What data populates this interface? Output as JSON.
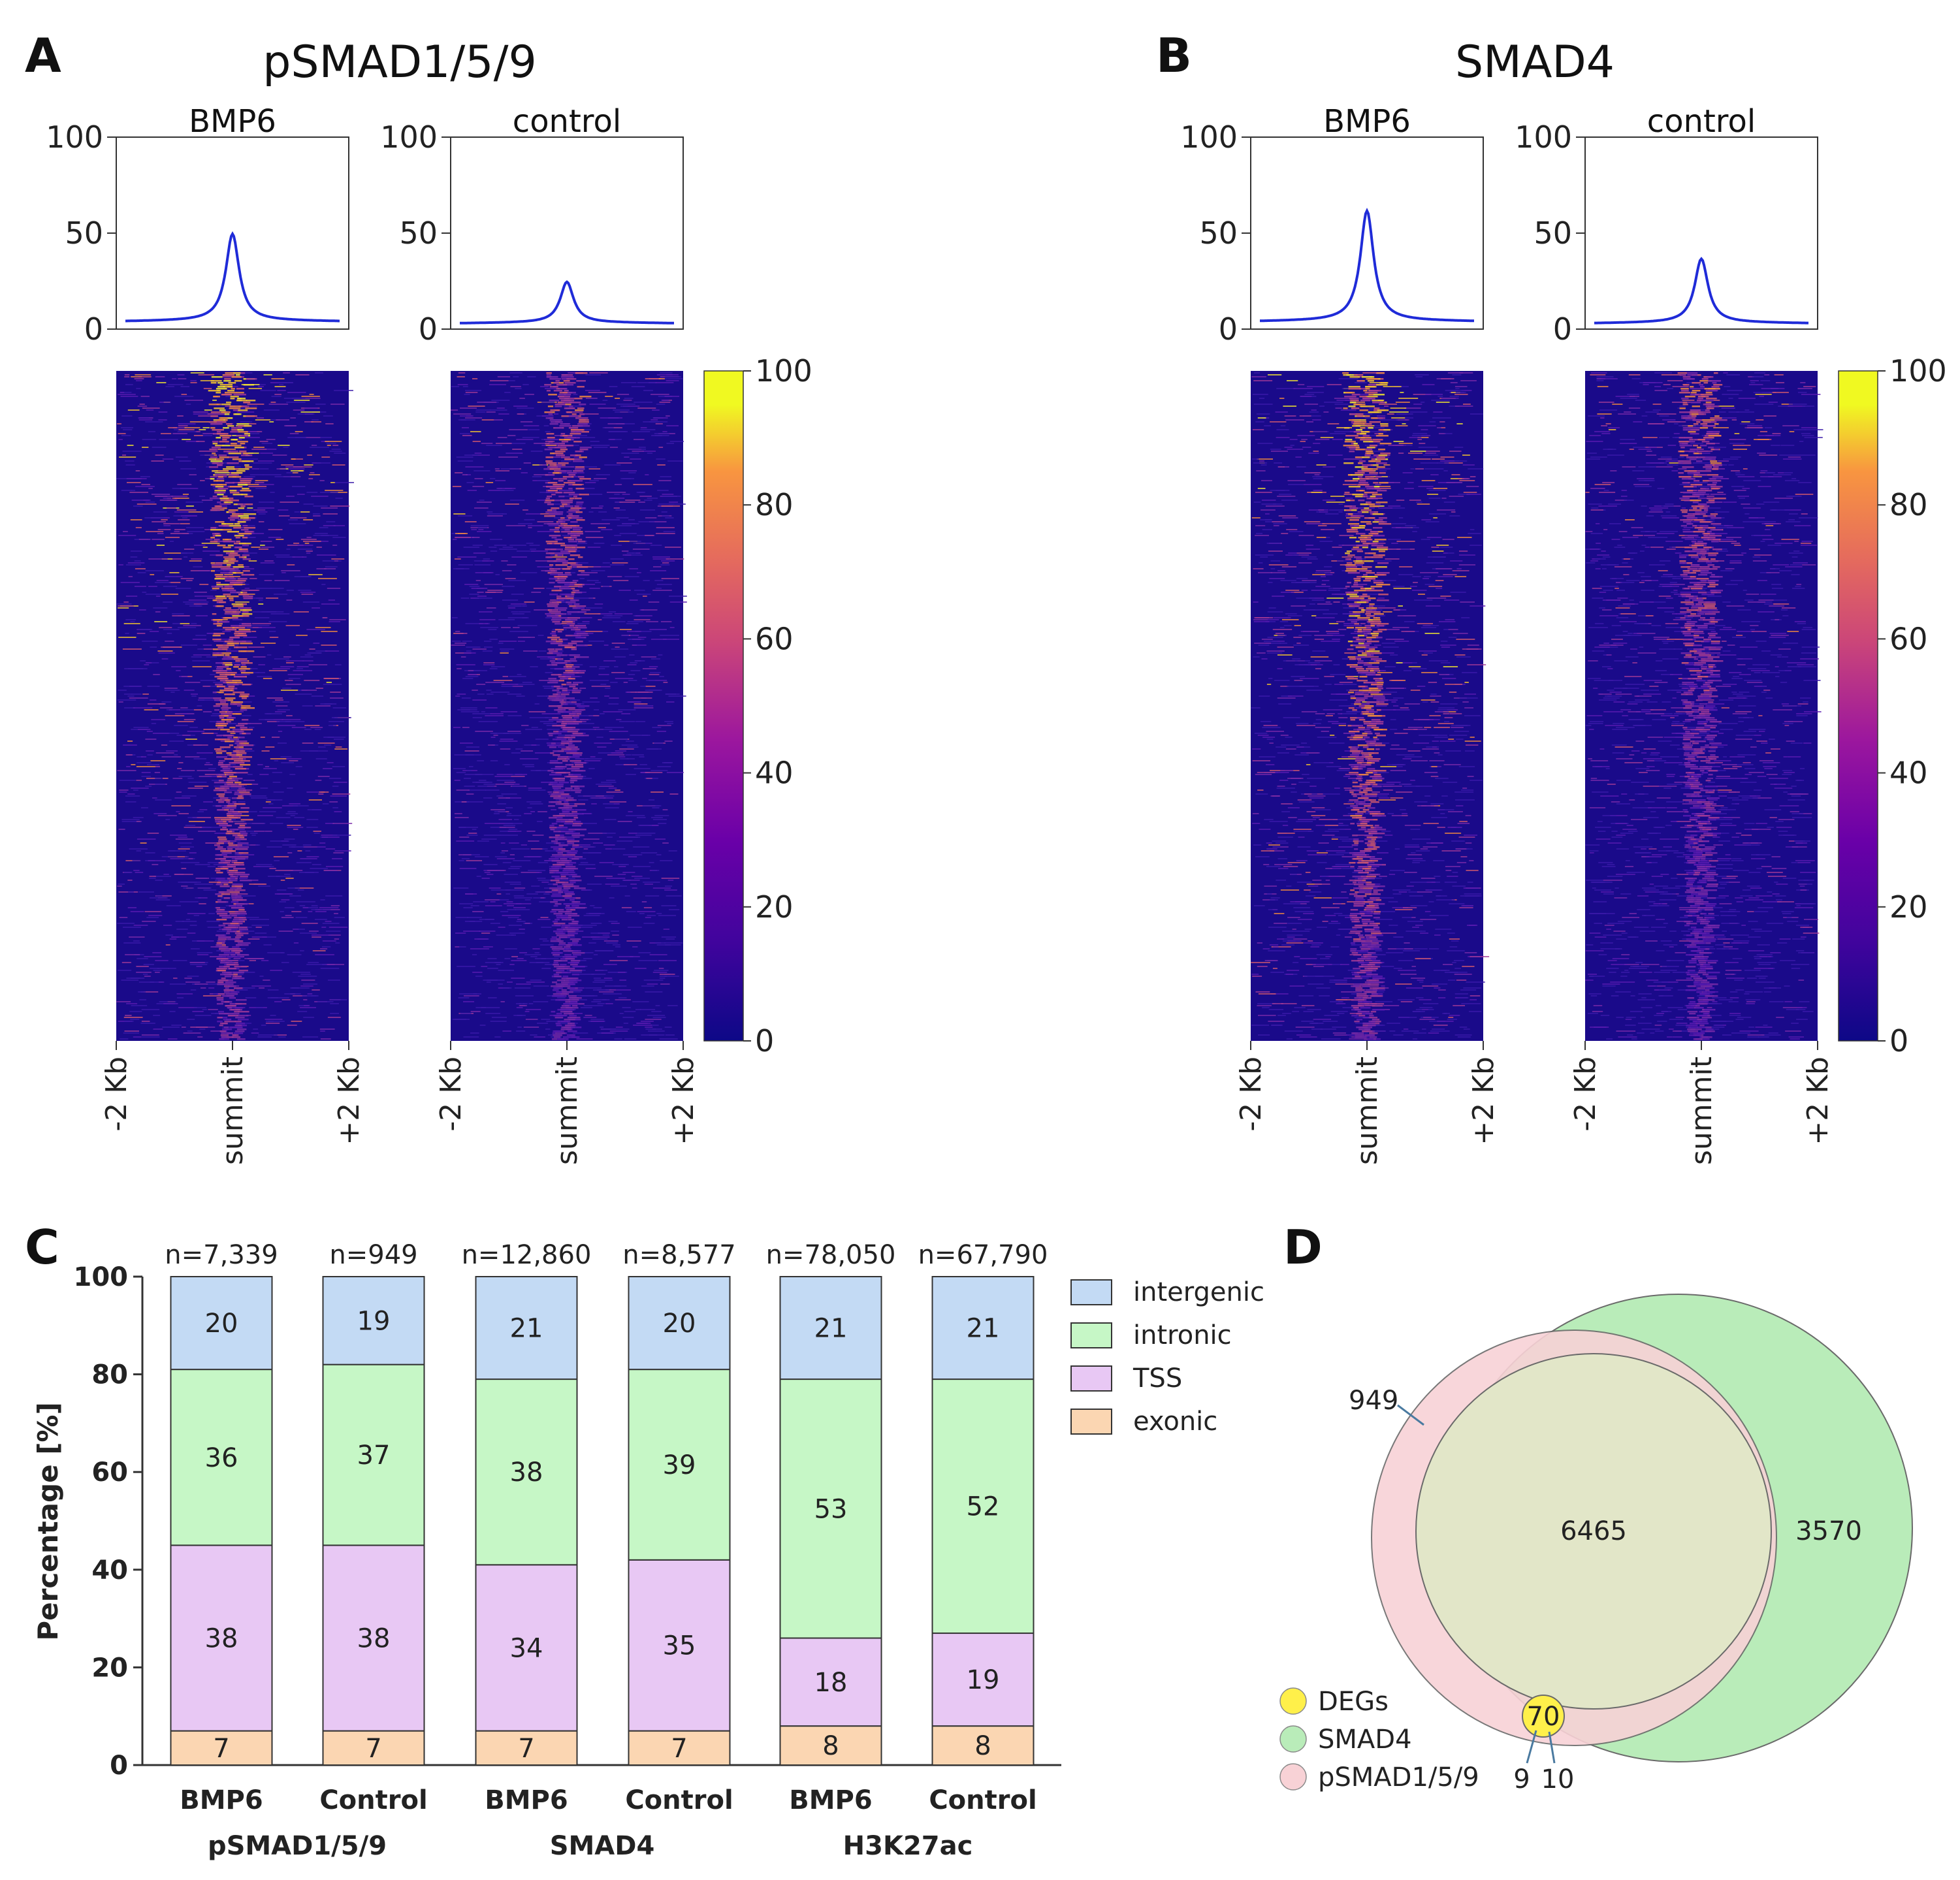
{
  "chart_data": [
    {
      "panel": "A",
      "type": "heatmap",
      "title": "pSMAD1/5/9",
      "conditions": [
        {
          "name": "BMP6",
          "profile_peak": 49,
          "profile_baseline": 4
        },
        {
          "name": "control",
          "profile_peak": 24,
          "profile_baseline": 3
        }
      ],
      "profile_ylim": [
        0,
        100
      ],
      "profile_yticks": [
        "0",
        "50",
        "100"
      ],
      "xticks": [
        "-2 Kb",
        "summit",
        "+2 Kb"
      ],
      "colorbar": {
        "min": 0,
        "max": 100,
        "ticks": [
          "0",
          "20",
          "40",
          "60",
          "80",
          "100"
        ],
        "colormap": "plasma"
      }
    },
    {
      "panel": "B",
      "type": "heatmap",
      "title": "SMAD4",
      "conditions": [
        {
          "name": "BMP6",
          "profile_peak": 61,
          "profile_baseline": 4
        },
        {
          "name": "control",
          "profile_peak": 36,
          "profile_baseline": 3
        }
      ],
      "profile_ylim": [
        0,
        100
      ],
      "profile_yticks": [
        "0",
        "50",
        "100"
      ],
      "xticks": [
        "-2 Kb",
        "summit",
        "+2 Kb"
      ],
      "colorbar": {
        "min": 0,
        "max": 100,
        "ticks": [
          "0",
          "20",
          "40",
          "60",
          "80",
          "100"
        ],
        "colormap": "plasma"
      }
    },
    {
      "panel": "C",
      "type": "bar",
      "stacked": true,
      "ylabel": "Percentage [%]",
      "ylim": [
        0,
        100
      ],
      "yticks": [
        "0",
        "20",
        "40",
        "60",
        "80",
        "100"
      ],
      "categories": [
        "BMP6",
        "Control",
        "BMP6",
        "Control",
        "BMP6",
        "Control"
      ],
      "groups": [
        "pSMAD1/5/9",
        "SMAD4",
        "H3K27ac"
      ],
      "n_labels": [
        "n=7,339",
        "n=949",
        "n=12,860",
        "n=8,577",
        "n=78,050",
        "n=67,790"
      ],
      "series": [
        {
          "name": "exonic",
          "values": [
            7,
            7,
            7,
            7,
            8,
            8
          ],
          "color": "#fbd6b2"
        },
        {
          "name": "TSS",
          "values": [
            38,
            38,
            34,
            35,
            18,
            19
          ],
          "color": "#e8c8f4"
        },
        {
          "name": "intronic",
          "values": [
            36,
            37,
            38,
            39,
            53,
            52
          ],
          "color": "#c6f7c6"
        },
        {
          "name": "intergenic",
          "values": [
            20,
            19,
            21,
            20,
            21,
            21
          ],
          "color": "#c3daf4"
        }
      ],
      "legend_order": [
        "intergenic",
        "intronic",
        "TSS",
        "exonic"
      ],
      "legend_position": "right"
    },
    {
      "panel": "D",
      "type": "venn",
      "sets": [
        {
          "name": "DEGs",
          "color": "#fff04a"
        },
        {
          "name": "SMAD4",
          "color": "#b9ecb9"
        },
        {
          "name": "pSMAD1/5/9",
          "color": "#f8d2d6"
        }
      ],
      "regions": {
        "psmad_only": "949",
        "psmad_and_smad4": "6465",
        "smad4_only": "3570",
        "degs_all": "70",
        "degs_psmad": "9",
        "degs_smad4": "10"
      }
    }
  ]
}
